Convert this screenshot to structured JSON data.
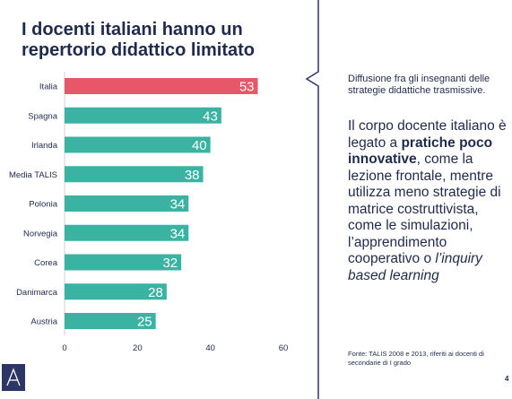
{
  "header": {
    "title": "I docenti italiani hanno un repertorio didattico limitato"
  },
  "panel": {
    "subtitle": "Diffusione fra gli insegnanti delle strategie didattiche trasmissive.",
    "body_part1": "Il corpo docente italiano è legato a ",
    "body_bold": "pratiche poco innovative",
    "body_part2": ", come la lezione frontale, mentre utilizza meno strategie di matrice costruttivista, come le simulazioni, l’apprendimento cooperativo o ",
    "body_italic": "l’inquiry based learning",
    "source": "Fonte: TALIS 2008 e 2013, riferiti ai docenti di secondarie di I grado"
  },
  "footer": {
    "page_number": "4"
  },
  "colors": {
    "highlight": "#e8566a",
    "bar": "#3bb3a3",
    "text": "#1f2a4d",
    "grid": "#c8c8c8"
  },
  "chart_data": {
    "type": "bar",
    "orientation": "horizontal",
    "categories": [
      "Italia",
      "Spagna",
      "Irlanda",
      "Media TALIS",
      "Polonia",
      "Norvegia",
      "Corea",
      "Danimarca",
      "Austria"
    ],
    "values": [
      53,
      43,
      40,
      38,
      34,
      34,
      32,
      28,
      25
    ],
    "highlight_index": 0,
    "xlim": [
      0,
      60
    ],
    "xticks": [
      0,
      20,
      40,
      60
    ],
    "grid": false
  }
}
